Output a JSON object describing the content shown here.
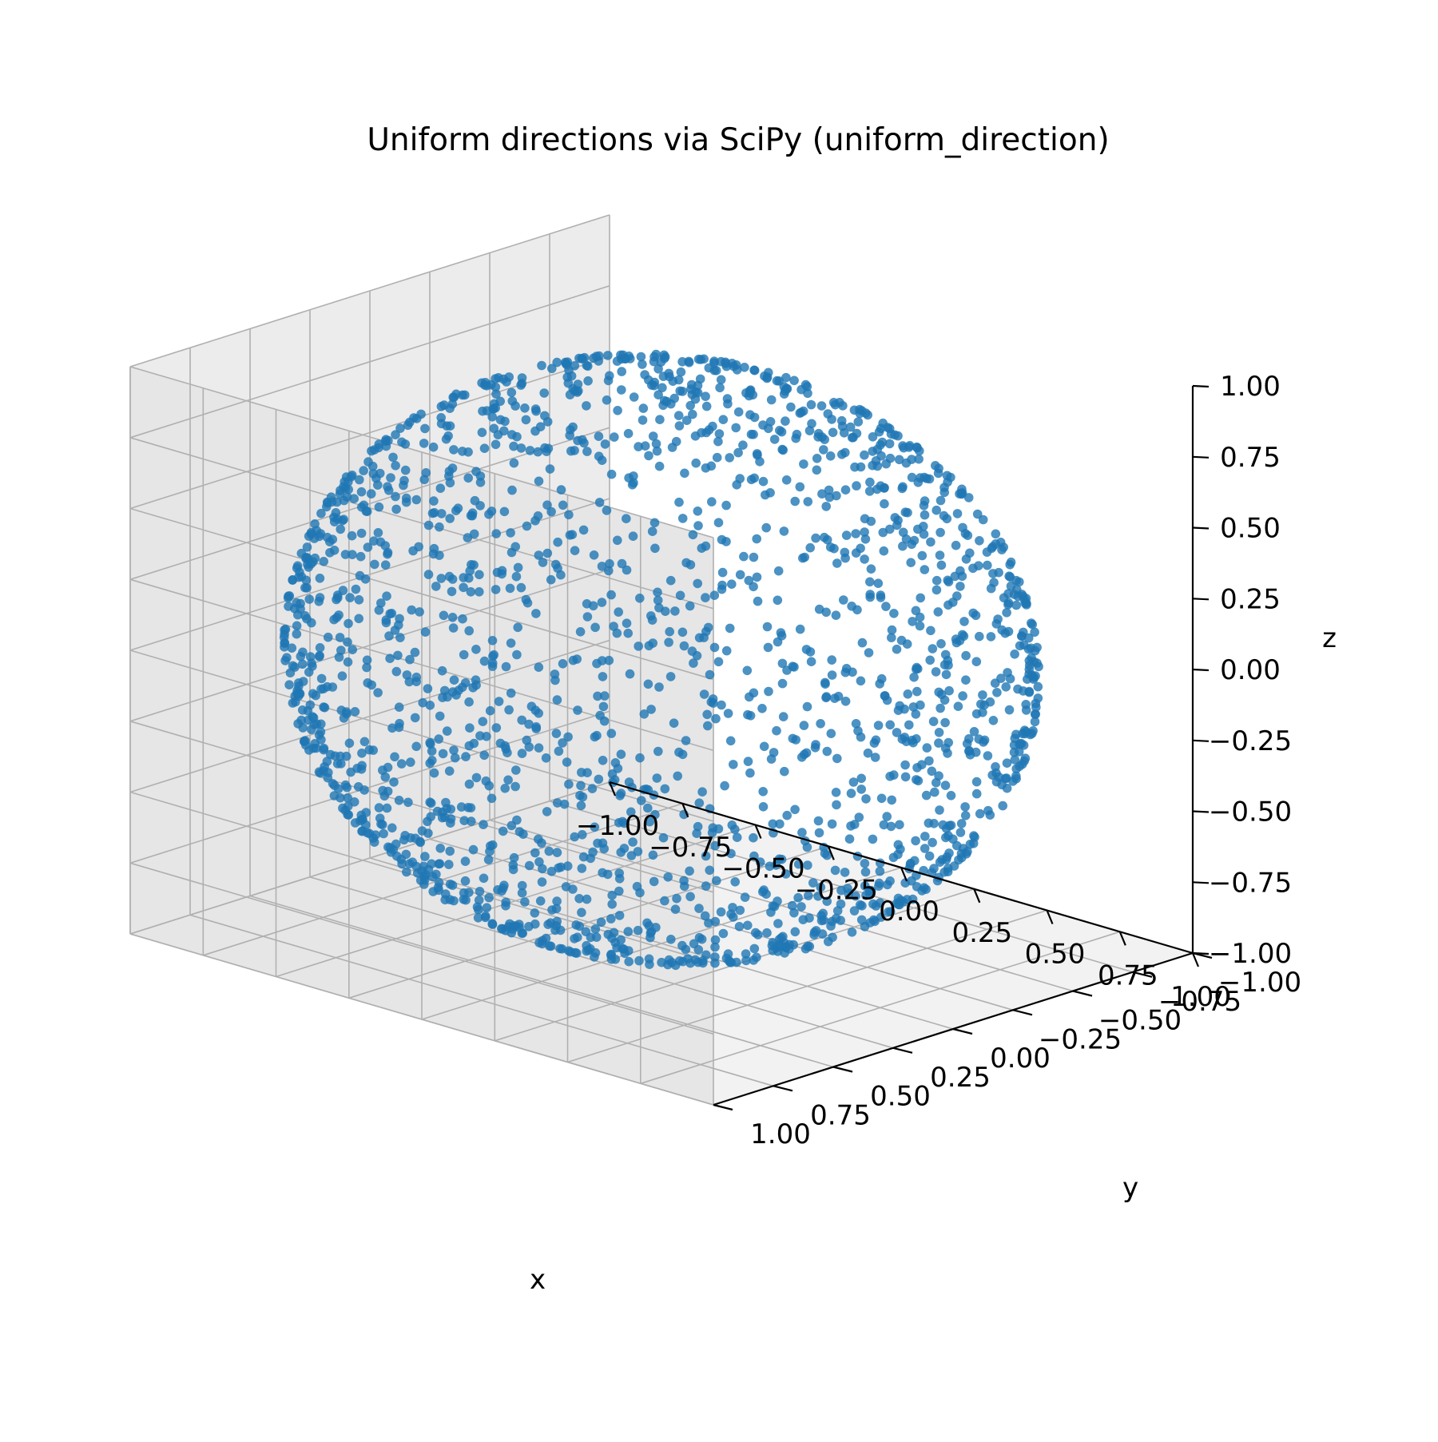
{
  "chart_data": {
    "type": "scatter",
    "projection": "3d",
    "title": "Uniform directions via SciPy (uniform_direction)",
    "xlabel": "x",
    "ylabel": "y",
    "zlabel": "z",
    "xlim": [
      -1.0,
      1.0
    ],
    "ylim": [
      -1.0,
      1.0
    ],
    "zlim": [
      -1.0,
      1.0
    ],
    "ticks": [
      -1.0,
      -0.75,
      -0.5,
      -0.25,
      0.0,
      0.25,
      0.5,
      0.75,
      1.0
    ],
    "tick_labels": [
      "−1.00",
      "−0.75",
      "−0.50",
      "−0.25",
      "0.00",
      "0.25",
      "0.50",
      "0.75",
      "1.00"
    ],
    "grid": true,
    "marker_color": "#1f77b4",
    "distribution": "points uniformly distributed on the unit sphere surface (x² + y² + z² = 1)",
    "n_points": 2000,
    "pane_colors": {
      "left": "#ececec",
      "right": "#e6e6e6",
      "floor": "#f2f2f2"
    }
  }
}
